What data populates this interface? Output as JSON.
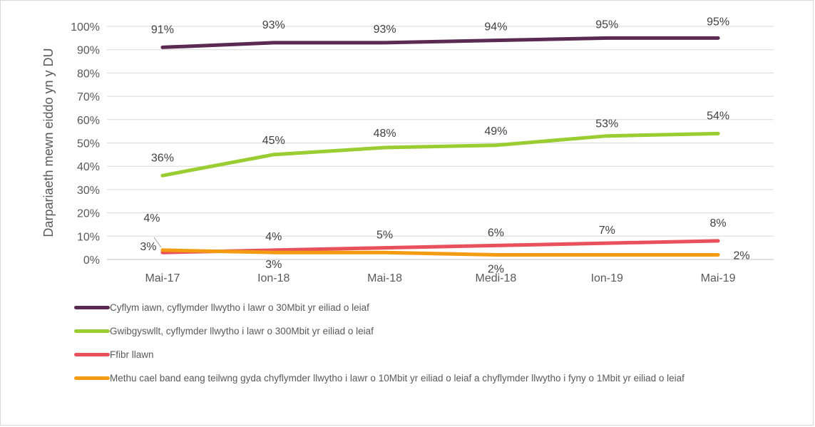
{
  "chart_data": {
    "type": "line",
    "categories": [
      "Mai-17",
      "Ion-18",
      "Mai-18",
      "Medi-18",
      "Ion-19",
      "Mai-19"
    ],
    "ylabel": "Darpariaeth mewn eiddo yn y DU",
    "ylim": [
      0,
      100
    ],
    "yticks": [
      "0%",
      "10%",
      "20%",
      "30%",
      "40%",
      "50%",
      "60%",
      "70%",
      "80%",
      "90%",
      "100%"
    ],
    "grid": true,
    "legend_position": "bottom",
    "series": [
      {
        "name": "Cyflym iawn, cyflymder llwytho i lawr o 30Mbit yr eiliad o leiaf",
        "color": "#5b2a52",
        "values": [
          91,
          93,
          93,
          94,
          95,
          95
        ],
        "labels": [
          "91%",
          "93%",
          "93%",
          "94%",
          "95%",
          "95%"
        ]
      },
      {
        "name": "Gwibgyswllt, cyflymder llwytho i lawr o 300Mbit yr eiliad o leiaf",
        "color": "#9acd32",
        "values": [
          36,
          45,
          48,
          49,
          53,
          54
        ],
        "labels": [
          "36%",
          "45%",
          "48%",
          "49%",
          "53%",
          "54%"
        ]
      },
      {
        "name": "Ffibr llawn",
        "color": "#e8505b",
        "values": [
          3,
          4,
          5,
          6,
          7,
          8
        ],
        "labels": [
          "3%",
          "4%",
          "5%",
          "6%",
          "7%",
          "8%"
        ]
      },
      {
        "name": "Methu cael band eang teilwng gyda chyflymder llwytho i lawr o 10Mbit yr eiliad o leiaf a chyflymder llwytho i fyny o 1Mbit yr eiliad o leiaf",
        "color": "#f39c12",
        "values": [
          4,
          3,
          3,
          2,
          2,
          2
        ],
        "labels": [
          "4%",
          "3%",
          "",
          "2%",
          "",
          "2%"
        ]
      }
    ]
  }
}
